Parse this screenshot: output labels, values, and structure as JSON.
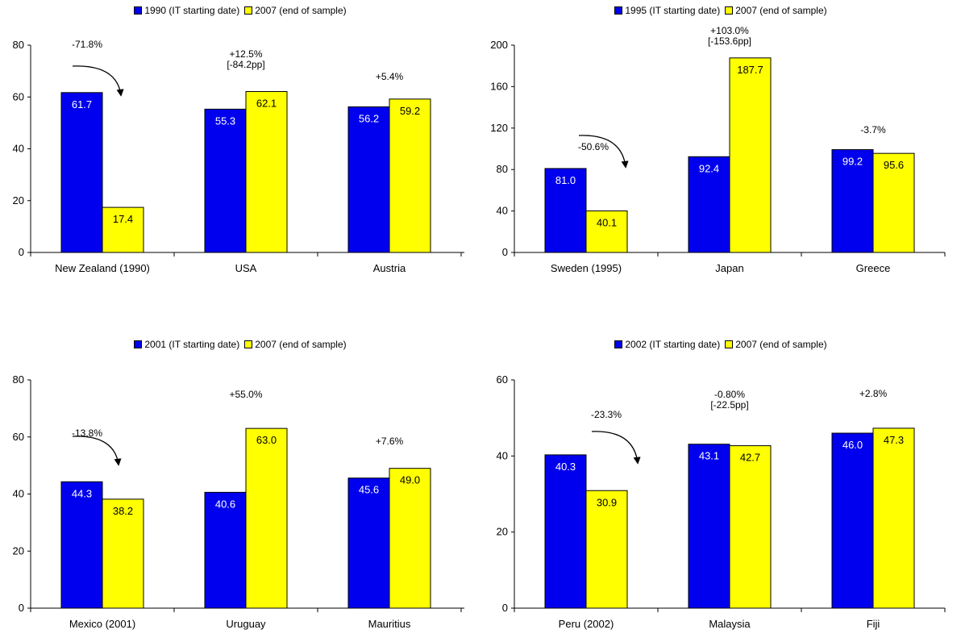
{
  "colors": {
    "start": "#0000ee",
    "end": "#ffff00",
    "axis": "#000000"
  },
  "chart_data": [
    {
      "type": "bar",
      "legend_position": "top-center",
      "series": [
        {
          "name": "1990 (IT starting date)",
          "color": "#0000ee",
          "values": [
            61.7,
            55.3,
            56.2
          ],
          "labels": [
            "61.7",
            "55.3",
            "56.2"
          ]
        },
        {
          "name": "2007 (end of sample)",
          "color": "#ffff00",
          "values": [
            17.4,
            62.1,
            59.2
          ],
          "labels": [
            "17.4",
            "62.1",
            "59.2"
          ]
        }
      ],
      "categories": [
        "New Zealand (1990)",
        "USA",
        "Austria"
      ],
      "ylim": [
        0,
        80
      ],
      "yticks": [
        "0",
        "20",
        "40",
        "60",
        "80"
      ],
      "annotations": [
        {
          "category": 0,
          "lines": [
            "-71.8%"
          ],
          "arrow": true
        },
        {
          "category": 1,
          "lines": [
            "+12.5%",
            "[-84.2pp]"
          ],
          "arrow": false
        },
        {
          "category": 2,
          "lines": [
            "+5.4%"
          ],
          "arrow": false
        }
      ]
    },
    {
      "type": "bar",
      "legend_position": "top-center",
      "series": [
        {
          "name": "1995 (IT starting date)",
          "color": "#0000ee",
          "values": [
            81.0,
            92.4,
            99.2
          ],
          "labels": [
            "81.0",
            "92.4",
            "99.2"
          ]
        },
        {
          "name": "2007 (end of sample)",
          "color": "#ffff00",
          "values": [
            40.1,
            187.7,
            95.6
          ],
          "labels": [
            "40.1",
            "187.7",
            "95.6"
          ]
        }
      ],
      "categories": [
        "Sweden (1995)",
        "Japan",
        "Greece"
      ],
      "ylim": [
        0,
        200
      ],
      "yticks": [
        "0",
        "40",
        "80",
        "120",
        "160",
        "200"
      ],
      "annotations": [
        {
          "category": 0,
          "lines": [
            "-50.6%"
          ],
          "arrow": true
        },
        {
          "category": 1,
          "lines": [
            "+103.0%",
            "[-153.6pp]"
          ],
          "arrow": false
        },
        {
          "category": 2,
          "lines": [
            "-3.7%"
          ],
          "arrow": false
        }
      ]
    },
    {
      "type": "bar",
      "legend_position": "top-center",
      "series": [
        {
          "name": "2001 (IT starting date)",
          "color": "#0000ee",
          "values": [
            44.3,
            40.6,
            45.6
          ],
          "labels": [
            "44.3",
            "40.6",
            "45.6"
          ]
        },
        {
          "name": "2007 (end of sample)",
          "color": "#ffff00",
          "values": [
            38.2,
            63.0,
            49.0
          ],
          "labels": [
            "38.2",
            "63.0",
            "49.0"
          ]
        }
      ],
      "categories": [
        "Mexico (2001)",
        "Uruguay",
        "Mauritius"
      ],
      "ylim": [
        0,
        80
      ],
      "yticks": [
        "0",
        "20",
        "40",
        "60",
        "80"
      ],
      "annotations": [
        {
          "category": 0,
          "lines": [
            "-13.8%"
          ],
          "arrow": true
        },
        {
          "category": 1,
          "lines": [
            "+55.0%"
          ],
          "arrow": false
        },
        {
          "category": 2,
          "lines": [
            "+7.6%"
          ],
          "arrow": false
        }
      ]
    },
    {
      "type": "bar",
      "legend_position": "top-center",
      "series": [
        {
          "name": "2002 (IT starting date)",
          "color": "#0000ee",
          "values": [
            40.3,
            43.1,
            46.0
          ],
          "labels": [
            "40.3",
            "43.1",
            "46.0"
          ]
        },
        {
          "name": "2007 (end of sample)",
          "color": "#ffff00",
          "values": [
            30.9,
            42.7,
            47.3
          ],
          "labels": [
            "30.9",
            "42.7",
            "47.3"
          ]
        }
      ],
      "categories": [
        "Peru (2002)",
        "Malaysia",
        "Fiji"
      ],
      "ylim": [
        0,
        60
      ],
      "yticks": [
        "0",
        "20",
        "40",
        "60"
      ],
      "annotations": [
        {
          "category": 0,
          "lines": [
            "-23.3%"
          ],
          "arrow": true
        },
        {
          "category": 1,
          "lines": [
            "-0.80%",
            "[-22.5pp]"
          ],
          "arrow": false
        },
        {
          "category": 2,
          "lines": [
            "+2.8%"
          ],
          "arrow": false
        }
      ]
    }
  ]
}
